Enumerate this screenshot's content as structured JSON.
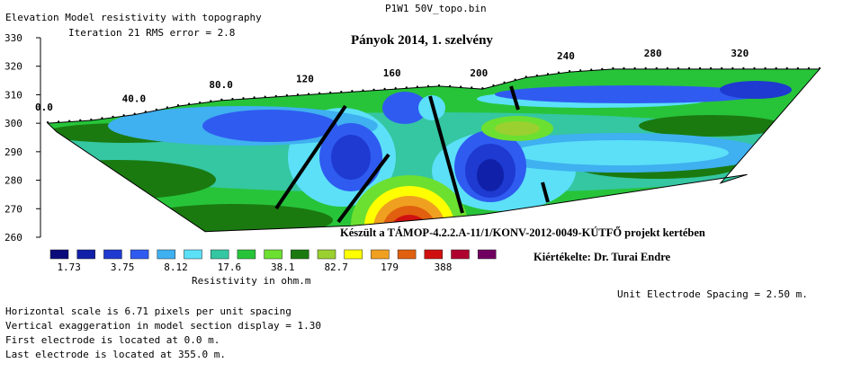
{
  "window_title": "P1W1 50V_topo.bin",
  "header": {
    "left_title": "Elevation  Model resistivity with topography",
    "iteration": "Iteration 21 RMS error = 2.8",
    "plot_title": "Pányok 2014, 1. szelvény"
  },
  "credit": {
    "project": "Készült a TÁMOP-4.2.2.A-11/1/KONV-2012-0049-KÚTFŐ projekt kertében",
    "evaluated_by": "Kiértékelte: Dr. Turai Endre"
  },
  "legend": {
    "title": "Resistivity in ohm.m",
    "swatch_colors": [
      "#0a0a7a",
      "#1020a8",
      "#1e3ad0",
      "#2f5bf0",
      "#3fb0f0",
      "#5be0f8",
      "#35c6a2",
      "#27c43a",
      "#6ce030",
      "#1a7a10",
      "#9ad030",
      "#ffff00",
      "#f0a020",
      "#e06010",
      "#d01010",
      "#b00030",
      "#700060"
    ],
    "labels": [
      "1.73",
      "3.75",
      "8.12",
      "17.6",
      "38.1",
      "82.7",
      "179",
      "388"
    ]
  },
  "footer": {
    "unit_spacing": "Unit Electrode Spacing = 2.50 m.",
    "lines": [
      "Horizontal scale is 6.71 pixels per unit spacing",
      "Vertical exaggeration in model section display = 1.30",
      "First electrode is located at  0.0  m.",
      "Last electrode is located at 355.0 m."
    ]
  },
  "chart_data": {
    "type": "heatmap",
    "title": "Pányok 2014, 1. szelvény",
    "ylabel": "Elevation",
    "y_ticks": [
      330,
      320,
      310,
      300,
      290,
      280,
      270,
      260
    ],
    "ylim": [
      260,
      330
    ],
    "x_ticks": [
      0,
      40,
      80,
      120,
      160,
      200,
      240,
      280,
      320
    ],
    "x_tick_labels": [
      "0.0",
      "40.0",
      "80.0",
      "120",
      "160",
      "200",
      "240",
      "280",
      "320"
    ],
    "xlim": [
      0,
      355
    ],
    "topography": {
      "x": [
        0,
        20,
        40,
        60,
        80,
        100,
        120,
        140,
        160,
        180,
        200,
        220,
        240,
        260,
        280,
        300,
        320,
        340,
        355
      ],
      "elevation": [
        300,
        301,
        303,
        306,
        308,
        309,
        310,
        311,
        312,
        313,
        312,
        316,
        318,
        319,
        319,
        319,
        319,
        319,
        319
      ]
    },
    "color_scale": {
      "unit": "ohm.m",
      "labels": [
        1.73,
        3.75,
        8.12,
        17.6,
        38.1,
        82.7,
        179,
        388
      ]
    }
  }
}
